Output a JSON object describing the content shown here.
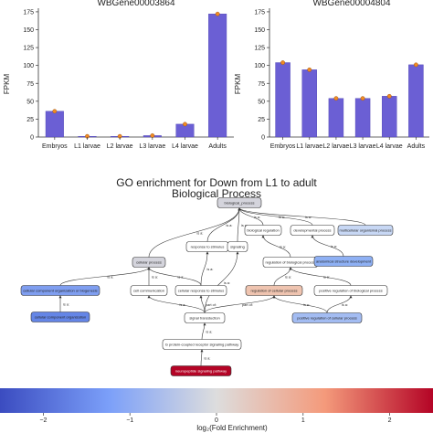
{
  "chart_data": [
    {
      "type": "bar",
      "title": "WBGene00003864",
      "ylabel": "FPKM",
      "categories": [
        "Embryos",
        "L1 larvae",
        "L2 larvae",
        "L3 larvae",
        "L4 larvae",
        "Adults"
      ],
      "values": [
        36,
        1,
        1,
        2,
        18,
        172
      ],
      "ylim": [
        0,
        180
      ],
      "yticks": [
        0,
        25,
        50,
        75,
        100,
        125,
        150,
        175
      ],
      "bar_color": "#6b5fd4",
      "marker_color": "#f08a24",
      "grid": false
    },
    {
      "type": "bar",
      "title": "WBGene00004804",
      "ylabel": "FPKM",
      "categories": [
        "Embryos",
        "L1 larvae",
        "L2 larvae",
        "L3 larvae",
        "L4 larvae",
        "Adults"
      ],
      "values": [
        104,
        94,
        54,
        54,
        57,
        101
      ],
      "ylim": [
        0,
        180
      ],
      "yticks": [
        0,
        25,
        50,
        75,
        100,
        125,
        150,
        175
      ],
      "bar_color": "#6b5fd4",
      "marker_color": "#f08a24",
      "grid": false
    }
  ],
  "go_graph": {
    "title_line1": "GO enrichment for Down from L1 to adult",
    "title_line2": "Biological Process",
    "colorbar": {
      "label": "log₂(Fold Enrichment)",
      "min": -2.5,
      "max": 2.5,
      "ticks": [
        -2,
        -1,
        0,
        1,
        2
      ],
      "tick_labels": [
        "−2",
        "−1",
        "0",
        "1",
        "2"
      ],
      "colors": [
        "#3b4cc0",
        "#7b9ff9",
        "#dddddd",
        "#f49a7b",
        "#b40426"
      ]
    },
    "edge_labels": {
      "is_a": "is a:",
      "part_of": "part of:"
    },
    "nodes": {
      "biological_process": {
        "label": "biological_process",
        "fill": "#d4d4dc"
      },
      "response_to_stimulus": {
        "label": "response to stimulus",
        "fill": "#ffffff"
      },
      "signaling": {
        "label": "signaling",
        "fill": "#ffffff"
      },
      "biological_regulation": {
        "label": "biological regulation",
        "fill": "#ffffff"
      },
      "developmental_process": {
        "label": "developmental process",
        "fill": "#ffffff"
      },
      "multicellular_organismal_process": {
        "label": "multicellular organismal process",
        "fill": "#c7d7f4"
      },
      "cellular_process": {
        "label": "cellular process",
        "fill": "#d4d4dc"
      },
      "regulation_of_biological_process": {
        "label": "regulation of biological process",
        "fill": "#ffffff"
      },
      "anatomical_structure_development": {
        "label": "anatomical structure development",
        "fill": "#8eb0f4"
      },
      "cellular_component_organization_or_biogenesis": {
        "label": "cellular component organization or biogenesis",
        "fill": "#7f9ef0"
      },
      "cell_communication": {
        "label": "cell communication",
        "fill": "#ffffff"
      },
      "cellular_response_to_stimulus": {
        "label": "cellular response to stimulus",
        "fill": "#ffffff"
      },
      "regulation_of_cellular_process": {
        "label": "regulation of cellular process",
        "fill": "#efc4b0"
      },
      "positive_regulation_of_biological_process": {
        "label": "positive regulation of biological process",
        "fill": "#ffffff"
      },
      "cellular_component_organization": {
        "label": "cellular component organization",
        "fill": "#6485e6"
      },
      "signal_transduction": {
        "label": "signal transduction",
        "fill": "#ffffff"
      },
      "positive_regulation_of_cellular_process": {
        "label": "positive regulation of cellular process",
        "fill": "#a3bcf2"
      },
      "g_protein_pathway": {
        "label": "G protein-coupled receptor signaling pathway",
        "fill": "#ffffff"
      },
      "neuropeptide_signaling_pathway": {
        "label": "neuropeptide signaling pathway",
        "fill": "#b40426",
        "text_color": "#ffffff"
      }
    }
  }
}
